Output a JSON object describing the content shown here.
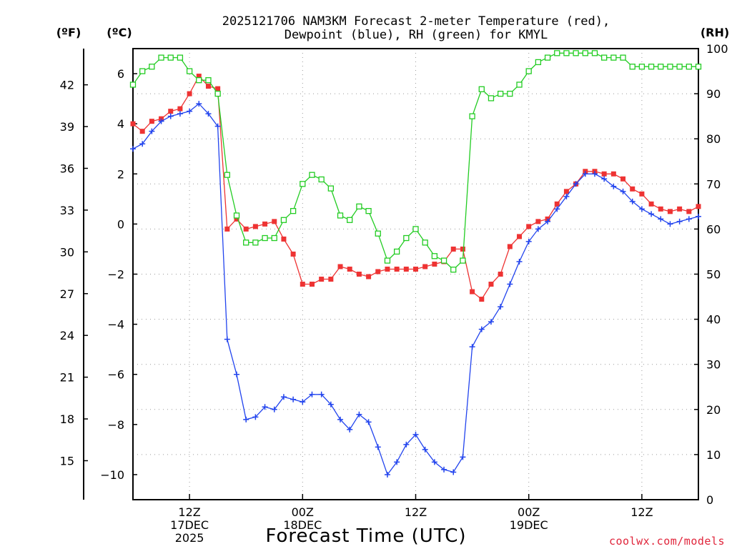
{
  "chart_data": {
    "type": "line",
    "title": [
      "2025121706 NAM3KM Forecast 2-meter Temperature (red),",
      "Dewpoint (blue), RH (green) for KMYL"
    ],
    "xlabel": "Forecast Time (UTC)",
    "credit": "coolwx.com/models",
    "units": {
      "fahrenheit": "(ºF)",
      "celsius": "(ºC)",
      "rh": "(RH)"
    },
    "x_range_hours": [
      6,
      66
    ],
    "x_ticks": [
      {
        "hour": 12,
        "lines": [
          "12Z",
          "17DEC",
          "2025"
        ]
      },
      {
        "hour": 24,
        "lines": [
          "00Z",
          "18DEC"
        ]
      },
      {
        "hour": 36,
        "lines": [
          "12Z"
        ]
      },
      {
        "hour": 48,
        "lines": [
          "00Z",
          "19DEC"
        ]
      },
      {
        "hour": 60,
        "lines": [
          "12Z"
        ]
      }
    ],
    "y_celsius": {
      "range": [
        -11,
        7
      ],
      "ticks": [
        6,
        4,
        2,
        0,
        -2,
        -4,
        -6,
        -8,
        -10
      ]
    },
    "y_fahrenheit": {
      "ticks": [
        42,
        39,
        36,
        33,
        30,
        27,
        24,
        21,
        18,
        15
      ]
    },
    "y_rh": {
      "range": [
        0,
        100
      ],
      "ticks": [
        100,
        90,
        80,
        70,
        60,
        50,
        40,
        30,
        20,
        10,
        0
      ]
    },
    "series": [
      {
        "name": "2-meter Temperature",
        "axis": "celsius",
        "color": "#ee3333",
        "marker": "filled-square",
        "x": [
          6,
          7,
          8,
          9,
          10,
          11,
          12,
          13,
          14,
          15,
          16,
          17,
          18,
          19,
          20,
          21,
          22,
          23,
          24,
          25,
          26,
          27,
          28,
          29,
          30,
          31,
          32,
          33,
          34,
          35,
          36,
          37,
          38,
          39,
          40,
          41,
          42,
          43,
          44,
          45,
          46,
          47,
          48,
          49,
          50,
          51,
          52,
          53,
          54,
          55,
          56,
          57,
          58,
          59,
          60,
          61,
          62,
          63,
          64,
          65,
          66
        ],
        "values": [
          4.0,
          3.7,
          4.1,
          4.2,
          4.5,
          4.6,
          5.2,
          5.9,
          5.5,
          5.4,
          -0.2,
          0.2,
          -0.2,
          -0.1,
          0.0,
          0.1,
          -0.6,
          -1.2,
          -2.4,
          -2.4,
          -2.2,
          -2.2,
          -1.7,
          -1.8,
          -2.0,
          -2.1,
          -1.9,
          -1.8,
          -1.8,
          -1.8,
          -1.8,
          -1.7,
          -1.6,
          -1.5,
          -1.0,
          -1.0,
          -2.7,
          -3.0,
          -2.4,
          -2.0,
          -0.9,
          -0.5,
          -0.1,
          0.1,
          0.2,
          0.8,
          1.3,
          1.6,
          2.1,
          2.1,
          2.0,
          2.0,
          1.8,
          1.4,
          1.2,
          0.8,
          0.6,
          0.5,
          0.6,
          0.5,
          0.7
        ]
      },
      {
        "name": "Dewpoint",
        "axis": "celsius",
        "color": "#2244ee",
        "marker": "plus",
        "x": [
          6,
          7,
          8,
          9,
          10,
          11,
          12,
          13,
          14,
          15,
          16,
          17,
          18,
          19,
          20,
          21,
          22,
          23,
          24,
          25,
          26,
          27,
          28,
          29,
          30,
          31,
          32,
          33,
          34,
          35,
          36,
          37,
          38,
          39,
          40,
          41,
          42,
          43,
          44,
          45,
          46,
          47,
          48,
          49,
          50,
          51,
          52,
          53,
          54,
          55,
          56,
          57,
          58,
          59,
          60,
          61,
          62,
          63,
          64,
          65,
          66
        ],
        "values": [
          3.0,
          3.2,
          3.7,
          4.1,
          4.3,
          4.4,
          4.5,
          4.8,
          4.4,
          3.9,
          -4.6,
          -6.0,
          -7.8,
          -7.7,
          -7.3,
          -7.4,
          -6.9,
          -7.0,
          -7.1,
          -6.8,
          -6.8,
          -7.2,
          -7.8,
          -8.2,
          -7.6,
          -7.9,
          -8.9,
          -10.0,
          -9.5,
          -8.8,
          -8.4,
          -9.0,
          -9.5,
          -9.8,
          -9.9,
          -9.3,
          -4.9,
          -4.2,
          -3.9,
          -3.3,
          -2.4,
          -1.5,
          -0.7,
          -0.2,
          0.1,
          0.6,
          1.1,
          1.6,
          2.0,
          2.0,
          1.8,
          1.5,
          1.3,
          0.9,
          0.6,
          0.4,
          0.2,
          0.0,
          0.1,
          0.2,
          0.3
        ]
      },
      {
        "name": "RH",
        "axis": "rh",
        "color": "#22cc22",
        "marker": "open-square",
        "x": [
          6,
          7,
          8,
          9,
          10,
          11,
          12,
          13,
          14,
          15,
          16,
          17,
          18,
          19,
          20,
          21,
          22,
          23,
          24,
          25,
          26,
          27,
          28,
          29,
          30,
          31,
          32,
          33,
          34,
          35,
          36,
          37,
          38,
          39,
          40,
          41,
          42,
          43,
          44,
          45,
          46,
          47,
          48,
          49,
          50,
          51,
          52,
          53,
          54,
          55,
          56,
          57,
          58,
          59,
          60,
          61,
          62,
          63,
          64,
          65,
          66
        ],
        "values": [
          92,
          95,
          96,
          98,
          98,
          98,
          95,
          93,
          93,
          90,
          72,
          63,
          57,
          57,
          58,
          58,
          62,
          64,
          70,
          72,
          71,
          69,
          63,
          62,
          65,
          64,
          59,
          53,
          55,
          58,
          60,
          57,
          54,
          53,
          51,
          53,
          85,
          91,
          89,
          90,
          90,
          92,
          95,
          97,
          98,
          99,
          99,
          99,
          99,
          99,
          98,
          98,
          98,
          96,
          96,
          96,
          96,
          96,
          96,
          96,
          96
        ]
      }
    ]
  }
}
